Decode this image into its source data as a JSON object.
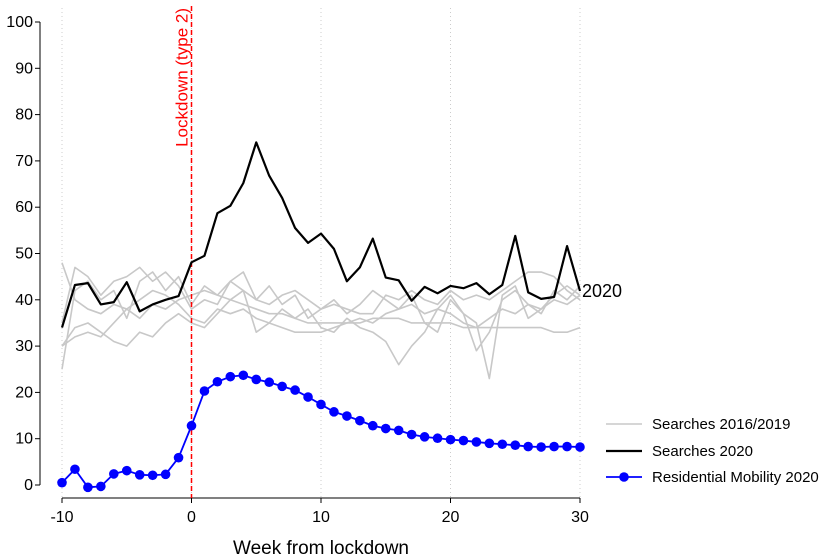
{
  "chart_data": {
    "type": "line",
    "xlabel": "Week from lockdown",
    "ylabel": "",
    "xlim": [
      -10,
      30
    ],
    "ylim": [
      0,
      100
    ],
    "x_ticks": [
      -10,
      0,
      10,
      20,
      30
    ],
    "x_tick_labels": [
      "-10",
      "0",
      "10",
      "20",
      "30"
    ],
    "y_ticks": [
      0,
      10,
      20,
      30,
      40,
      50,
      60,
      70,
      80,
      90,
      100
    ],
    "y_tick_labels": [
      "0",
      "10",
      "20",
      "30",
      "40",
      "50",
      "60",
      "70",
      "80",
      "90",
      "100"
    ],
    "x_gridlines": [
      -10,
      0,
      10,
      20,
      30
    ],
    "grid": "vertical dotted",
    "legend_position": "right",
    "colors": {
      "searches_2016_2019": "#c8c8c8",
      "searches_2020": "#000000",
      "mobility": "#0000ff",
      "lockdown_line": "#ff0000"
    },
    "vertical_line": {
      "x": 0,
      "label": "Lockdown (type 2)",
      "color": "#ff0000"
    },
    "end_label": "2020",
    "x": [
      -10,
      -9,
      -8,
      -7,
      -6,
      -5,
      -4,
      -3,
      -2,
      -1,
      0,
      1,
      2,
      3,
      4,
      5,
      6,
      7,
      8,
      9,
      10,
      11,
      12,
      13,
      14,
      15,
      16,
      17,
      18,
      19,
      20,
      21,
      22,
      23,
      24,
      25,
      26,
      27,
      28,
      29,
      30
    ],
    "background_series": [
      [
        30,
        32,
        33,
        32,
        35,
        38,
        36,
        39,
        38,
        40,
        41,
        42,
        41,
        40,
        39,
        38,
        37,
        37,
        36,
        35,
        35,
        35,
        35,
        35,
        36,
        36,
        36,
        35,
        35,
        35,
        35,
        34,
        34,
        34,
        34,
        34,
        34,
        34,
        33,
        33,
        34
      ],
      [
        48,
        40,
        38,
        37,
        39,
        38,
        40,
        42,
        41,
        39,
        36,
        35,
        38,
        37,
        38,
        36,
        35,
        34,
        33,
        33,
        33,
        34,
        35,
        36,
        35,
        37,
        38,
        39,
        37,
        38,
        37,
        35,
        34,
        36,
        38,
        37,
        39,
        38,
        40,
        39,
        41
      ],
      [
        25,
        42,
        44,
        40,
        42,
        36,
        44,
        46,
        42,
        45,
        39,
        43,
        41,
        44,
        42,
        40,
        43,
        39,
        41,
        36,
        38,
        40,
        37,
        39,
        42,
        40,
        38,
        41,
        35,
        33,
        40,
        37,
        29,
        33,
        40,
        42,
        39,
        37,
        42,
        40,
        43
      ],
      [
        30,
        34,
        35,
        33,
        31,
        30,
        33,
        32,
        35,
        37,
        35,
        34,
        37,
        40,
        42,
        33,
        35,
        38,
        36,
        38,
        34,
        33,
        36,
        34,
        33,
        31,
        26,
        30,
        33,
        38,
        41,
        37,
        35,
        23,
        41,
        43,
        36,
        38,
        41,
        43,
        41
      ],
      [
        35,
        47,
        45,
        41,
        44,
        45,
        47,
        44,
        46,
        43,
        38,
        40,
        39,
        44,
        46,
        40,
        39,
        41,
        42,
        40,
        38,
        39,
        38,
        37,
        37,
        41,
        40,
        42,
        40,
        39,
        42,
        40,
        41,
        40,
        42,
        44,
        46,
        46,
        45,
        42,
        40
      ]
    ],
    "series": [
      {
        "name": "Searches 2016/2019",
        "color": "#c8c8c8"
      },
      {
        "name": "Searches 2020",
        "color": "#000000",
        "values": [
          34,
          43.2,
          43.6,
          39,
          39.5,
          43.8,
          37.5,
          39,
          40,
          40.8,
          48.1,
          49.5,
          58.7,
          60.3,
          65.2,
          74,
          66.8,
          62,
          55.5,
          52.3,
          54.3,
          51,
          44,
          47,
          53.2,
          44.8,
          44.2,
          39.8,
          42.8,
          41.4,
          43,
          42.5,
          43.6,
          41.2,
          43.2,
          53.8,
          41.6,
          40.2,
          40.6,
          51.6,
          41.9
        ]
      },
      {
        "name": "Residential Mobility 2020",
        "color": "#0000ff",
        "markers": true,
        "values": [
          0.5,
          3.4,
          -0.5,
          -0.3,
          2.4,
          3.1,
          2.2,
          2.1,
          2.3,
          5.9,
          12.8,
          20.3,
          22.3,
          23.4,
          23.7,
          22.8,
          22.2,
          21.3,
          20.5,
          19,
          17.4,
          15.8,
          14.9,
          13.9,
          12.8,
          12.2,
          11.8,
          10.9,
          10.4,
          10.1,
          9.8,
          9.6,
          9.3,
          9,
          8.8,
          8.6,
          8.3,
          8.2,
          8.3,
          8.3,
          8.2
        ]
      }
    ]
  }
}
